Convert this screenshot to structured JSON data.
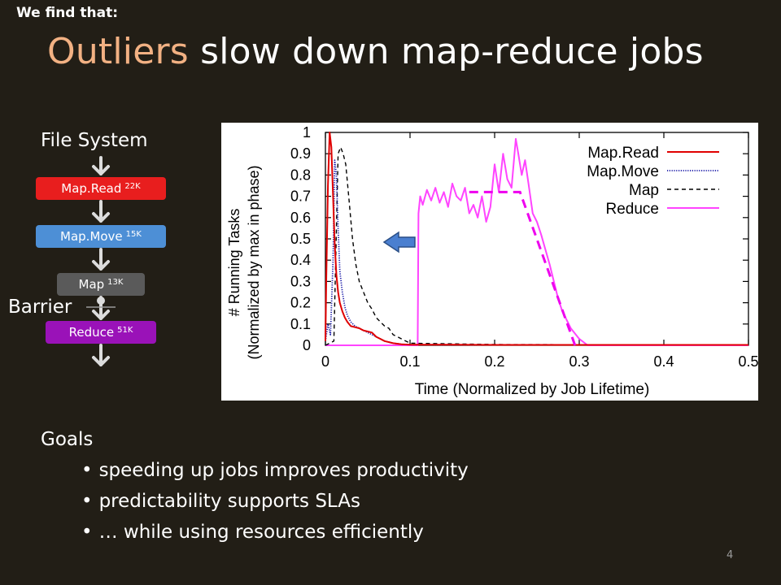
{
  "slide": {
    "kicker": "We find that:",
    "title_highlight": "Outliers",
    "title_rest": " slow down map-reduce jobs",
    "page_number": "4"
  },
  "pipeline": {
    "top_label": "File System",
    "barrier_label": "Barrier",
    "stages": [
      {
        "name": "Map.Read",
        "count": "22K",
        "color": "#e81e1e"
      },
      {
        "name": "Map.Move",
        "count": "15K",
        "color": "#4d8fd6"
      },
      {
        "name": "Map",
        "count": "13K",
        "color": "#5a5a5a"
      },
      {
        "name": "Reduce",
        "count": "51K",
        "color": "#9a12b8"
      }
    ],
    "arrow_icon": "chevron-down-icon"
  },
  "goals": {
    "heading": "Goals",
    "items": [
      "speeding up jobs improves productivity",
      "predictability supports SLAs",
      "… while using resources efficiently"
    ]
  },
  "chart_data": {
    "type": "line",
    "xlabel": "Time (Normalized by Job Lifetime)",
    "ylabel": "# Running Tasks",
    "ylabel2": "(Normalized by max in phase)",
    "xlim": [
      0,
      0.5
    ],
    "ylim": [
      0,
      1
    ],
    "xticks": [
      "0",
      "0.1",
      "0.2",
      "0.3",
      "0.4",
      "0.5"
    ],
    "yticks": [
      "0",
      "0.1",
      "0.2",
      "0.3",
      "0.4",
      "0.5",
      "0.6",
      "0.7",
      "0.8",
      "0.9",
      "1"
    ],
    "legend_position": "top-right",
    "grid": false,
    "series": [
      {
        "name": "Map.Read",
        "color": "#e00000",
        "style": "solid",
        "x": [
          0,
          0.001,
          0.003,
          0.005,
          0.007,
          0.009,
          0.011,
          0.013,
          0.015,
          0.017,
          0.02,
          0.023,
          0.026,
          0.03,
          0.035,
          0.04,
          0.045,
          0.05,
          0.055,
          0.06,
          0.065,
          0.07,
          0.08,
          0.09,
          0.1,
          0.15,
          0.2,
          0.3,
          0.4,
          0.5
        ],
        "y": [
          0.02,
          0.3,
          0.75,
          1.0,
          0.93,
          0.7,
          0.48,
          0.33,
          0.25,
          0.2,
          0.16,
          0.13,
          0.11,
          0.09,
          0.085,
          0.08,
          0.07,
          0.065,
          0.06,
          0.04,
          0.03,
          0.02,
          0.01,
          0.005,
          0.003,
          0.003,
          0.002,
          0.002,
          0.002,
          0.002
        ]
      },
      {
        "name": "Map.Move",
        "color": "#1a1aa8",
        "style": "dotted",
        "x": [
          0,
          0.003,
          0.006,
          0.009,
          0.011,
          0.013,
          0.015,
          0.017,
          0.02,
          0.023,
          0.026,
          0.03,
          0.035,
          0.04,
          0.045,
          0.05,
          0.055,
          0.06,
          0.065,
          0.07,
          0.08,
          0.09,
          0.1,
          0.2,
          0.3,
          0.4,
          0.5
        ],
        "y": [
          0.02,
          0.1,
          0.05,
          0.4,
          0.87,
          0.8,
          0.55,
          0.35,
          0.25,
          0.18,
          0.14,
          0.11,
          0.09,
          0.08,
          0.07,
          0.06,
          0.05,
          0.04,
          0.03,
          0.02,
          0.01,
          0.005,
          0.003,
          0.002,
          0.002,
          0.002,
          0.002
        ]
      },
      {
        "name": "Map",
        "color": "#000000",
        "style": "dashed",
        "x": [
          0,
          0.01,
          0.015,
          0.018,
          0.021,
          0.024,
          0.028,
          0.032,
          0.036,
          0.04,
          0.045,
          0.05,
          0.055,
          0.06,
          0.065,
          0.07,
          0.075,
          0.08,
          0.09,
          0.1,
          0.2,
          0.3,
          0.4,
          0.5
        ],
        "y": [
          0,
          0.02,
          0.9,
          0.93,
          0.9,
          0.85,
          0.68,
          0.5,
          0.38,
          0.3,
          0.25,
          0.2,
          0.17,
          0.13,
          0.11,
          0.09,
          0.08,
          0.05,
          0.03,
          0.01,
          0.004,
          0.003,
          0.003,
          0.003
        ]
      },
      {
        "name": "Reduce",
        "color": "#ff44ff",
        "style": "solid",
        "x": [
          0,
          0.1,
          0.109,
          0.11,
          0.112,
          0.115,
          0.12,
          0.125,
          0.13,
          0.135,
          0.14,
          0.145,
          0.15,
          0.155,
          0.16,
          0.165,
          0.17,
          0.175,
          0.18,
          0.185,
          0.19,
          0.195,
          0.2,
          0.205,
          0.21,
          0.215,
          0.22,
          0.225,
          0.228,
          0.232,
          0.236,
          0.24,
          0.245,
          0.25,
          0.255,
          0.26,
          0.265,
          0.27,
          0.275,
          0.28,
          0.29,
          0.3,
          0.31,
          0.4,
          0.5
        ],
        "y": [
          0,
          0,
          0,
          0.62,
          0.7,
          0.66,
          0.73,
          0.68,
          0.74,
          0.67,
          0.72,
          0.65,
          0.76,
          0.7,
          0.68,
          0.74,
          0.62,
          0.66,
          0.6,
          0.7,
          0.58,
          0.65,
          0.85,
          0.72,
          0.9,
          0.78,
          0.74,
          0.97,
          0.9,
          0.8,
          0.87,
          0.76,
          0.62,
          0.58,
          0.52,
          0.45,
          0.38,
          0.3,
          0.22,
          0.16,
          0.08,
          0.03,
          0,
          0,
          0
        ]
      }
    ],
    "annotations": [
      {
        "type": "dashed-line",
        "color": "#ee00ee",
        "x": [
          0.17,
          0.23,
          0.295
        ],
        "y": [
          0.72,
          0.72,
          0.0
        ]
      },
      {
        "type": "arrow",
        "direction": "left",
        "color": "#4a7fd0",
        "icon": "arrow-left-icon"
      }
    ]
  }
}
